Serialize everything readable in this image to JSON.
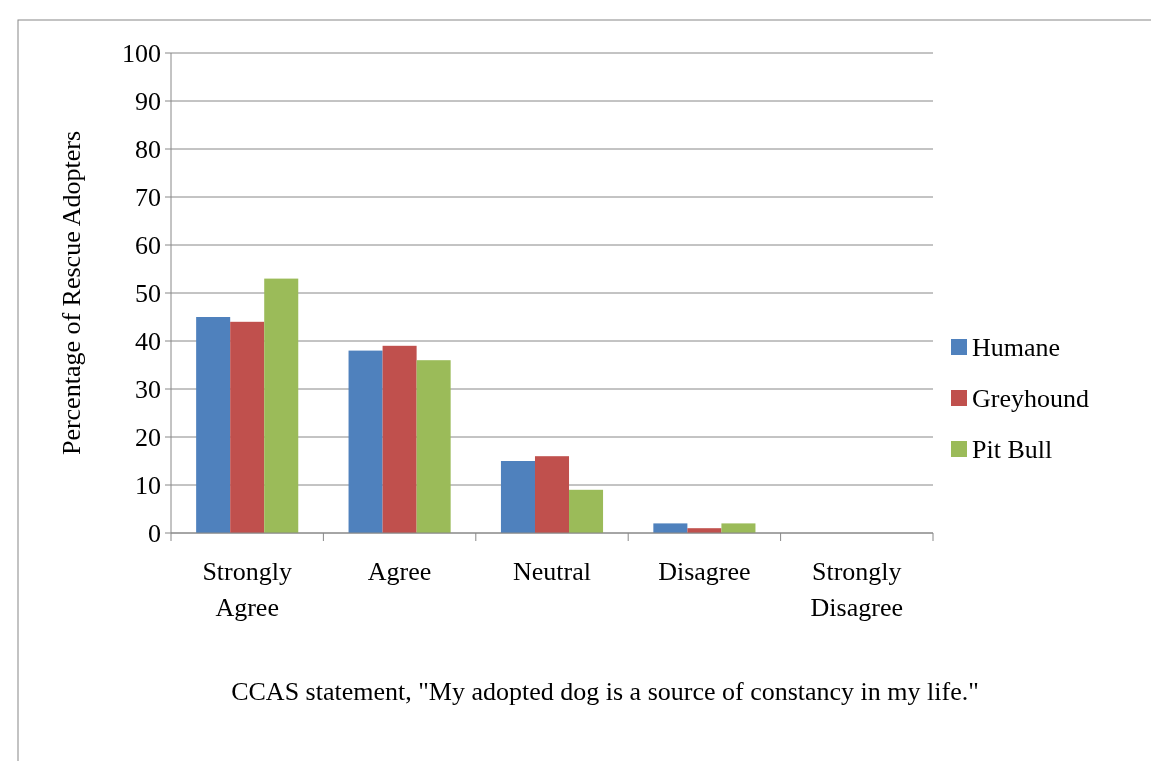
{
  "chart_data": {
    "type": "bar",
    "xlabel": "CCAS statement, \"My adopted dog is a source of constancy in my life.\"",
    "ylabel": "Percentage of Rescue Adopters",
    "categories": [
      [
        "Strongly",
        "Agree"
      ],
      [
        "Agree"
      ],
      [
        "Neutral"
      ],
      [
        "Disagree"
      ],
      [
        "Strongly",
        "Disagree"
      ]
    ],
    "series": [
      {
        "name": "Humane",
        "color": "#4f81bd",
        "values": [
          45,
          38,
          15,
          2,
          0
        ]
      },
      {
        "name": "Greyhound",
        "color": "#c0504d",
        "values": [
          44,
          39,
          16,
          1,
          0
        ]
      },
      {
        "name": "Pit Bull",
        "color": "#9bbb59",
        "values": [
          53,
          36,
          9,
          2,
          0
        ]
      }
    ],
    "ylim": [
      0,
      100
    ],
    "yticks": [
      0,
      10,
      20,
      30,
      40,
      50,
      60,
      70,
      80,
      90,
      100
    ],
    "grid": "y",
    "legend": "right"
  }
}
